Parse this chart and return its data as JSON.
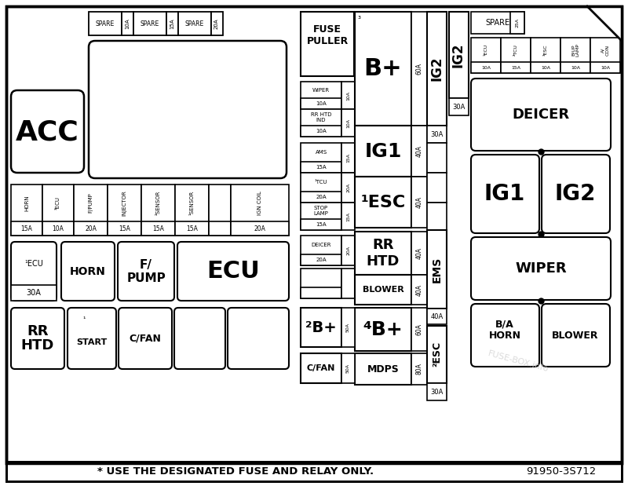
{
  "title": "* USE THE DESIGNATED FUSE AND RELAY ONLY.",
  "part_number": "91950-3S712",
  "watermark": "FUSE-BOX.info",
  "bg_color": "#ffffff",
  "border_color": "#000000"
}
